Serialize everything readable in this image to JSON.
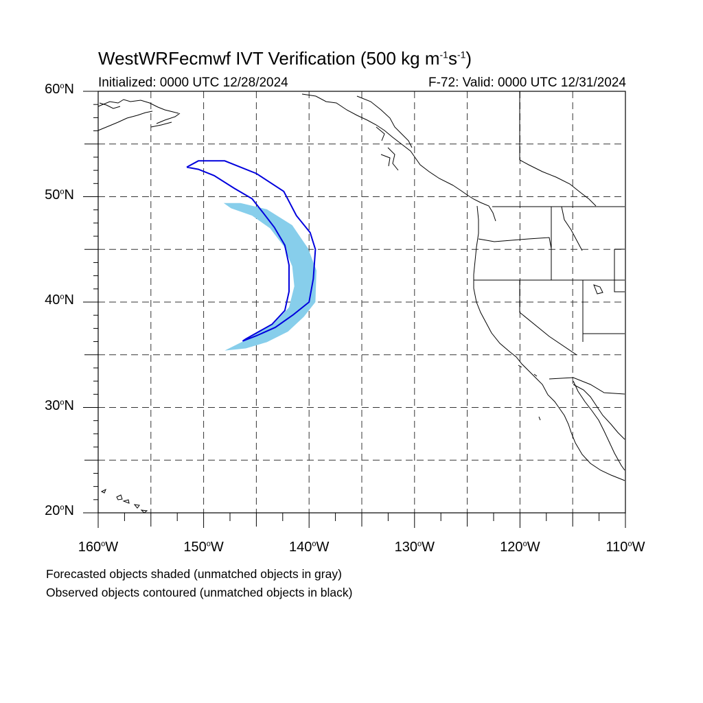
{
  "title": {
    "text": "WestWRFecmwf IVT Verification (500 kg m",
    "exp1": "-1",
    "mid": "s",
    "exp2": "-1",
    "end": ")"
  },
  "subtitle_left": "Initialized: 0000 UTC 12/28/2024",
  "subtitle_right": "F-72: Valid: 0000 UTC 12/31/2024",
  "degree_symbol": "o",
  "lat_labels": [
    {
      "num": "60",
      "hemi": "N"
    },
    {
      "num": "50",
      "hemi": "N"
    },
    {
      "num": "40",
      "hemi": "N"
    },
    {
      "num": "30",
      "hemi": "N"
    },
    {
      "num": "20",
      "hemi": "N"
    }
  ],
  "lon_labels": [
    {
      "num": "160",
      "hemi": "W"
    },
    {
      "num": "150",
      "hemi": "W"
    },
    {
      "num": "140",
      "hemi": "W"
    },
    {
      "num": "130",
      "hemi": "W"
    },
    {
      "num": "120",
      "hemi": "W"
    },
    {
      "num": "110",
      "hemi": "W"
    }
  ],
  "notes": [
    "Forecasted objects shaded (unmatched objects in gray)",
    "Observed objects contoured (unmatched objects in black)"
  ],
  "map": {
    "lon_range": [
      -160,
      -110
    ],
    "lat_range": [
      20,
      60
    ],
    "grid_lons": [
      -155,
      -150,
      -145,
      -140,
      -135,
      -130,
      -125,
      -120,
      -115
    ],
    "grid_lats": [
      55,
      50,
      45,
      40,
      35,
      30,
      25
    ],
    "forecast_fill_color": "#87ceeb",
    "observed_contour_color": "#0000dd",
    "forecast_object": [
      [
        -148.1,
        49.4
      ],
      [
        -146.5,
        49.4
      ],
      [
        -144.0,
        48.8
      ],
      [
        -141.6,
        47.3
      ],
      [
        -140.1,
        45.1
      ],
      [
        -139.3,
        43.0
      ],
      [
        -139.4,
        40.0
      ],
      [
        -140.5,
        38.6
      ],
      [
        -142.0,
        37.2
      ],
      [
        -144.0,
        36.2
      ],
      [
        -146.0,
        35.6
      ],
      [
        -148.0,
        35.4
      ],
      [
        -146.0,
        36.4
      ],
      [
        -143.4,
        37.9
      ],
      [
        -141.9,
        39.5
      ],
      [
        -141.4,
        41.5
      ],
      [
        -141.6,
        43.4
      ],
      [
        -142.4,
        45.3
      ],
      [
        -143.7,
        47.0
      ],
      [
        -145.4,
        48.2
      ],
      [
        -147.4,
        48.9
      ]
    ],
    "observed_object": [
      [
        -151.6,
        52.8
      ],
      [
        -150.5,
        53.4
      ],
      [
        -148.0,
        53.4
      ],
      [
        -145.0,
        52.2
      ],
      [
        -142.4,
        50.5
      ],
      [
        -141.2,
        48.2
      ],
      [
        -139.9,
        46.6
      ],
      [
        -139.4,
        45.0
      ],
      [
        -139.6,
        42.2
      ],
      [
        -140.0,
        40.0
      ],
      [
        -141.5,
        38.8
      ],
      [
        -143.2,
        37.6
      ],
      [
        -145.0,
        36.8
      ],
      [
        -146.3,
        36.3
      ],
      [
        -146.0,
        36.5
      ],
      [
        -143.5,
        37.9
      ],
      [
        -142.3,
        39.2
      ],
      [
        -141.9,
        41.0
      ],
      [
        -141.9,
        43.5
      ],
      [
        -142.3,
        45.4
      ],
      [
        -143.3,
        47.1
      ],
      [
        -144.3,
        48.4
      ],
      [
        -145.4,
        49.8
      ],
      [
        -147.1,
        50.8
      ],
      [
        -149.0,
        52.0
      ],
      [
        -150.5,
        52.6
      ]
    ]
  }
}
